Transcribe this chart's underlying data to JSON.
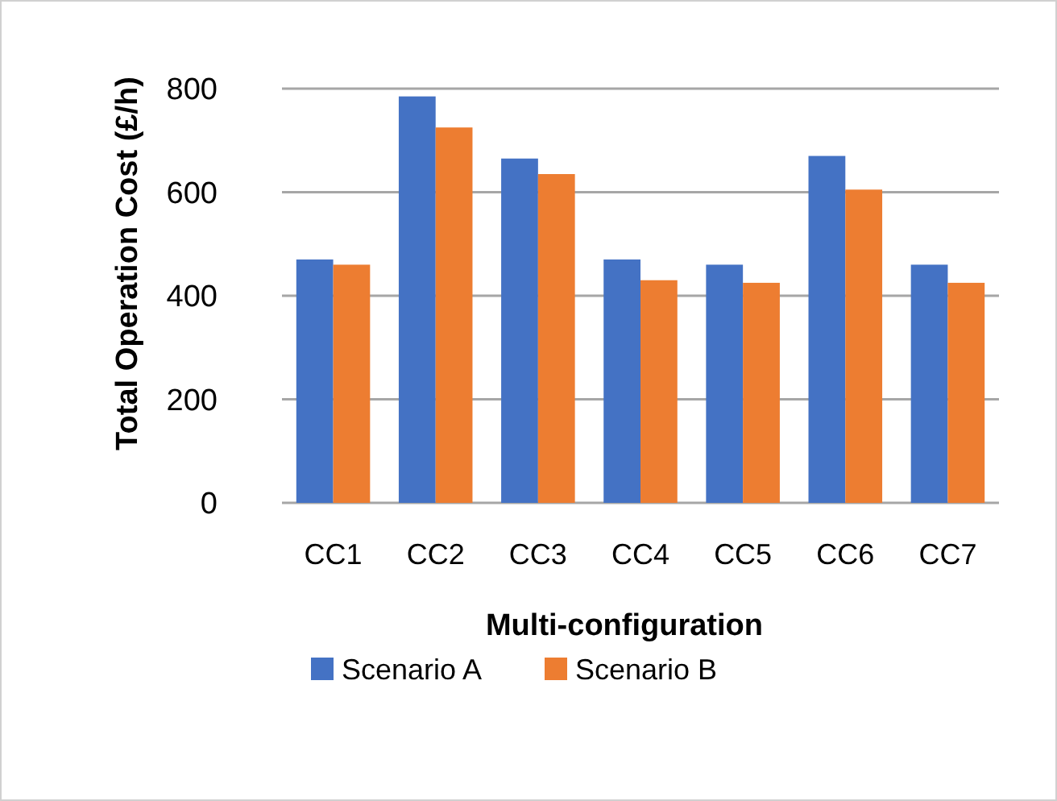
{
  "chart_data": {
    "type": "bar",
    "xlabel": "Multi-configuration",
    "ylabel": "Total Operation Cost (£/h)",
    "categories": [
      "CC1",
      "CC2",
      "CC3",
      "CC4",
      "CC5",
      "CC6",
      "CC7"
    ],
    "series": [
      {
        "name": "Scenario A",
        "color": "#4472c4",
        "values": [
          470,
          785,
          665,
          470,
          460,
          670,
          460
        ]
      },
      {
        "name": "Scenario B",
        "color": "#ed7d31",
        "values": [
          460,
          725,
          635,
          430,
          425,
          605,
          425
        ]
      }
    ],
    "ylim": [
      0,
      800
    ],
    "yticks": [
      0,
      200,
      400,
      600,
      800
    ],
    "grid": "y",
    "legend": "bottom"
  }
}
